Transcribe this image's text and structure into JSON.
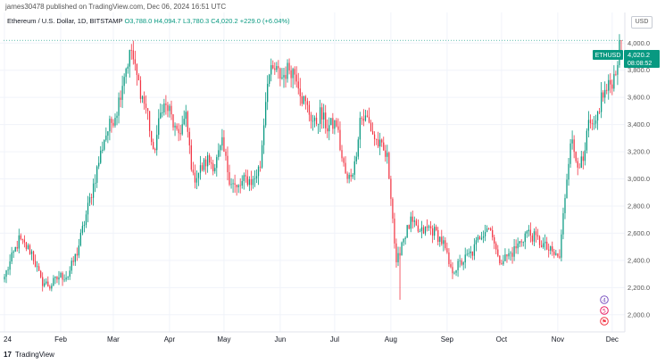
{
  "publisher": "james30478 published on TradingView.com, Dec 06, 2024 16:51 UTC",
  "symbol_line": {
    "name": "Ethereum / U.S. Dollar, 1D, BITSTAMP",
    "o": "O3,788.0",
    "h": "H4,094.7",
    "l": "L3,780.3",
    "c": "C4,020.2",
    "change": "+229.0 (+6.04%)"
  },
  "currency": "USD",
  "price_badge": {
    "symbol": "ETHUSD",
    "price": "4,020.2",
    "countdown": "08:08:52"
  },
  "footer": {
    "logo": "17",
    "text": "TradingView"
  },
  "events": [
    "4",
    "5",
    "⚑"
  ],
  "colors": {
    "up": "#089981",
    "down": "#f23645",
    "grid": "#f0f3fa",
    "badge": "#089981"
  },
  "chart_data": {
    "type": "candlestick",
    "ylim": [
      1900,
      4120
    ],
    "y_ticks": [
      2000,
      2200,
      2400,
      2600,
      2800,
      3000,
      3200,
      3400,
      3600,
      3800,
      4000
    ],
    "y_tick_labels": [
      "2,000.0",
      "2,200.0",
      "2,400.0",
      "2,600.0",
      "2,800.0",
      "3,000.0",
      "3,200.0",
      "3,400.0",
      "3,600.0",
      "3,800.0",
      "4,000.0"
    ],
    "x_ticks": [
      {
        "label": "24",
        "index": 0
      },
      {
        "label": "Feb",
        "index": 31
      },
      {
        "label": "Mar",
        "index": 60
      },
      {
        "label": "Apr",
        "index": 91
      },
      {
        "label": "May",
        "index": 121
      },
      {
        "label": "Jun",
        "index": 152
      },
      {
        "label": "Jul",
        "index": 182
      },
      {
        "label": "Aug",
        "index": 213
      },
      {
        "label": "Sep",
        "index": 244
      },
      {
        "label": "Oct",
        "index": 274
      },
      {
        "label": "Nov",
        "index": 305
      },
      {
        "label": "Dec",
        "index": 335
      }
    ],
    "total_days": 341,
    "close_anchors": [
      [
        0,
        2280
      ],
      [
        8,
        2550
      ],
      [
        15,
        2460
      ],
      [
        20,
        2250
      ],
      [
        25,
        2210
      ],
      [
        30,
        2280
      ],
      [
        35,
        2290
      ],
      [
        40,
        2460
      ],
      [
        48,
        2900
      ],
      [
        55,
        3300
      ],
      [
        62,
        3510
      ],
      [
        66,
        3780
      ],
      [
        70,
        3950
      ],
      [
        72,
        3800
      ],
      [
        76,
        3600
      ],
      [
        79,
        3480
      ],
      [
        82,
        3170
      ],
      [
        87,
        3550
      ],
      [
        91,
        3500
      ],
      [
        95,
        3310
      ],
      [
        100,
        3450
      ],
      [
        104,
        3000
      ],
      [
        107,
        3050
      ],
      [
        112,
        3140
      ],
      [
        116,
        3100
      ],
      [
        120,
        3250
      ],
      [
        124,
        3010
      ],
      [
        128,
        2920
      ],
      [
        133,
        3000
      ],
      [
        137,
        2980
      ],
      [
        141,
        3100
      ],
      [
        145,
        3750
      ],
      [
        149,
        3800
      ],
      [
        153,
        3750
      ],
      [
        157,
        3820
      ],
      [
        161,
        3770
      ],
      [
        164,
        3600
      ],
      [
        167,
        3520
      ],
      [
        171,
        3400
      ],
      [
        174,
        3480
      ],
      [
        178,
        3380
      ],
      [
        183,
        3410
      ],
      [
        186,
        3150
      ],
      [
        189,
        2980
      ],
      [
        193,
        3100
      ],
      [
        196,
        3450
      ],
      [
        200,
        3440
      ],
      [
        204,
        3300
      ],
      [
        208,
        3220
      ],
      [
        211,
        3150
      ],
      [
        213,
        2900
      ],
      [
        216,
        2350
      ],
      [
        219,
        2540
      ],
      [
        224,
        2680
      ],
      [
        229,
        2600
      ],
      [
        234,
        2640
      ],
      [
        238,
        2600
      ],
      [
        242,
        2520
      ],
      [
        246,
        2320
      ],
      [
        249,
        2350
      ],
      [
        253,
        2400
      ],
      [
        258,
        2460
      ],
      [
        262,
        2580
      ],
      [
        266,
        2650
      ],
      [
        269,
        2610
      ],
      [
        272,
        2400
      ],
      [
        276,
        2420
      ],
      [
        280,
        2460
      ],
      [
        284,
        2530
      ],
      [
        288,
        2610
      ],
      [
        293,
        2560
      ],
      [
        298,
        2500
      ],
      [
        302,
        2450
      ],
      [
        306,
        2420
      ],
      [
        309,
        2880
      ],
      [
        312,
        3300
      ],
      [
        315,
        3150
      ],
      [
        319,
        3100
      ],
      [
        322,
        3400
      ],
      [
        325,
        3350
      ],
      [
        329,
        3600
      ],
      [
        332,
        3650
      ],
      [
        336,
        3750
      ],
      [
        340,
        4020
      ]
    ]
  }
}
